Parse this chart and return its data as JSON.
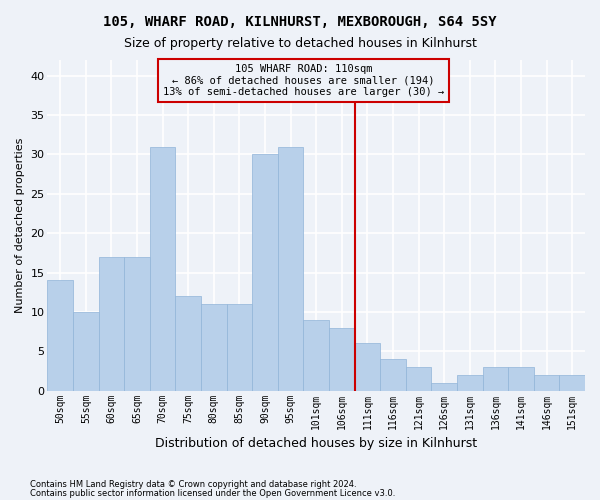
{
  "title1": "105, WHARF ROAD, KILNHURST, MEXBOROUGH, S64 5SY",
  "title2": "Size of property relative to detached houses in Kilnhurst",
  "xlabel": "Distribution of detached houses by size in Kilnhurst",
  "ylabel": "Number of detached properties",
  "categories": [
    "50sqm",
    "55sqm",
    "60sqm",
    "65sqm",
    "70sqm",
    "75sqm",
    "80sqm",
    "85sqm",
    "90sqm",
    "95sqm",
    "101sqm",
    "106sqm",
    "111sqm",
    "116sqm",
    "121sqm",
    "126sqm",
    "131sqm",
    "136sqm",
    "141sqm",
    "146sqm",
    "151sqm"
  ],
  "values": [
    14,
    10,
    17,
    17,
    31,
    12,
    11,
    11,
    30,
    31,
    9,
    8,
    6,
    4,
    3,
    1,
    2,
    3,
    3,
    2,
    2
  ],
  "bar_color": "#b8d0ea",
  "bar_edge_color": "#90b4d8",
  "vline_color": "#cc0000",
  "vline_x": 11.5,
  "annotation_line1": "105 WHARF ROAD: 110sqm",
  "annotation_line2": "← 86% of detached houses are smaller (194)",
  "annotation_line3": "13% of semi-detached houses are larger (30) →",
  "ylim": [
    0,
    42
  ],
  "yticks": [
    0,
    5,
    10,
    15,
    20,
    25,
    30,
    35,
    40
  ],
  "footnote1": "Contains HM Land Registry data © Crown copyright and database right 2024.",
  "footnote2": "Contains public sector information licensed under the Open Government Licence v3.0.",
  "bg_color": "#eef2f8",
  "grid_color": "#ffffff"
}
